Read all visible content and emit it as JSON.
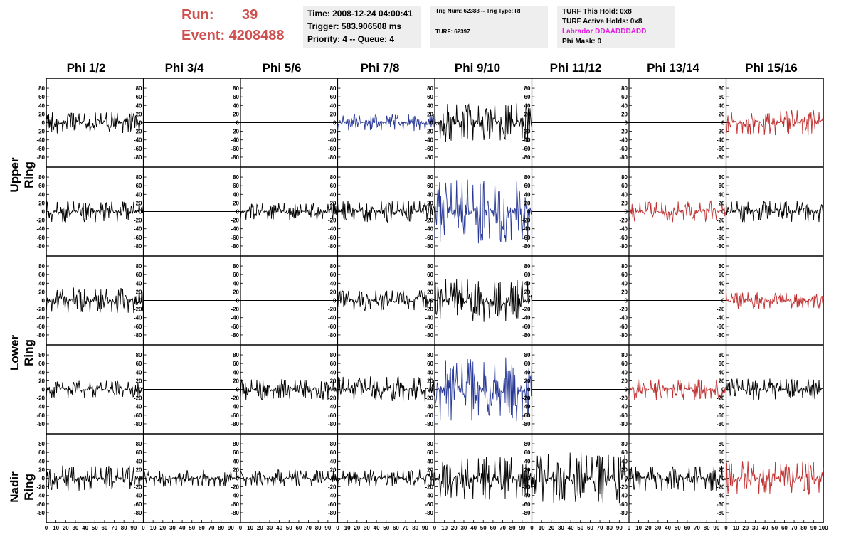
{
  "header": {
    "run_label": "Run:",
    "run_value": "39",
    "event_line": "Event: 4208488"
  },
  "info_box_1": {
    "time": "Time: 2008-12-24 04:00:41",
    "trigger": "Trigger: 583.906508 ms",
    "priority": "Priority: 4 -- Queue: 4"
  },
  "info_box_2": {
    "trig": "Trig Num: 62388 -- Trig Type: RF",
    "turf": "TURF: 62397"
  },
  "info_box_3": {
    "this_hold": "TURF This Hold: 0x8",
    "active_holds": "TURF Active Holds: 0x8",
    "labrador": "Labrador DDAADDDADD",
    "phi_mask": "Phi Mask: 0"
  },
  "colors": {
    "black": "#000000",
    "blue": "#283896",
    "red": "#c03030",
    "title_red": "#d05050",
    "magenta": "#e020e0"
  },
  "chart_data": {
    "type": "line",
    "columns": [
      "Phi 1/2",
      "Phi 3/4",
      "Phi 5/6",
      "Phi 7/8",
      "Phi 9/10",
      "Phi 11/12",
      "Phi 13/14",
      "Phi 15/16"
    ],
    "group_labels": [
      {
        "label": "Upper Ring",
        "rows": [
          0,
          1
        ]
      },
      {
        "label": "Lower Ring",
        "rows": [
          2,
          3
        ]
      },
      {
        "label": "Nadir Ring",
        "rows": [
          4
        ]
      }
    ],
    "ylim": [
      -90,
      90
    ],
    "yticks": [
      "80",
      "60",
      "40",
      "20",
      "0",
      "-20",
      "-40",
      "-60",
      "-80"
    ],
    "xlim": [
      0,
      100
    ],
    "xticks": [
      "0",
      "10",
      "20",
      "30",
      "40",
      "50",
      "60",
      "70",
      "80",
      "90",
      "100"
    ],
    "approx_peak_amplitude": [
      [
        25,
        0,
        0,
        20,
        45,
        0,
        0,
        30
      ],
      [
        25,
        0,
        20,
        25,
        75,
        0,
        25,
        25
      ],
      [
        30,
        0,
        0,
        25,
        50,
        0,
        0,
        20
      ],
      [
        20,
        0,
        25,
        30,
        75,
        0,
        25,
        25
      ],
      [
        30,
        20,
        20,
        20,
        50,
        60,
        30,
        40
      ]
    ],
    "trace_color": [
      [
        "black",
        "black",
        "black",
        "blue",
        "black",
        "black",
        "black",
        "red"
      ],
      [
        "black",
        "black",
        "black",
        "black",
        "blue",
        "black",
        "red",
        "black"
      ],
      [
        "black",
        "black",
        "black",
        "black",
        "black",
        "black",
        "black",
        "red"
      ],
      [
        "black",
        "black",
        "black",
        "black",
        "blue",
        "black",
        "red",
        "black"
      ],
      [
        "black",
        "black",
        "black",
        "black",
        "black",
        "black",
        "black",
        "red"
      ]
    ]
  }
}
